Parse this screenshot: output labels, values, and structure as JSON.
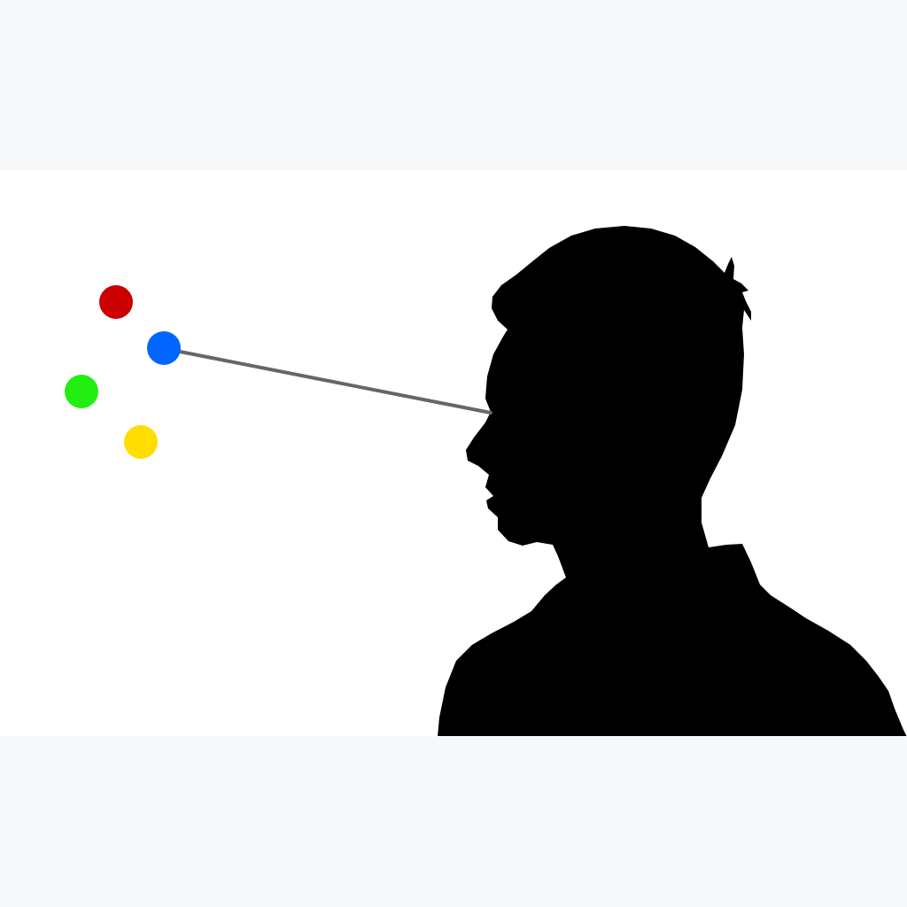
{
  "scene": {
    "background": "#f7f8fa",
    "panel_color": "#ffffff",
    "silhouette": {
      "subject": "person-head-profile",
      "facing": "left",
      "color": "#000000"
    },
    "gaze_line": {
      "color": "#666666",
      "target": "blue"
    },
    "dots": [
      {
        "name": "red",
        "color": "#cc0000"
      },
      {
        "name": "blue",
        "color": "#0066ff"
      },
      {
        "name": "green",
        "color": "#22ee11"
      },
      {
        "name": "yellow",
        "color": "#ffdd00"
      }
    ]
  }
}
